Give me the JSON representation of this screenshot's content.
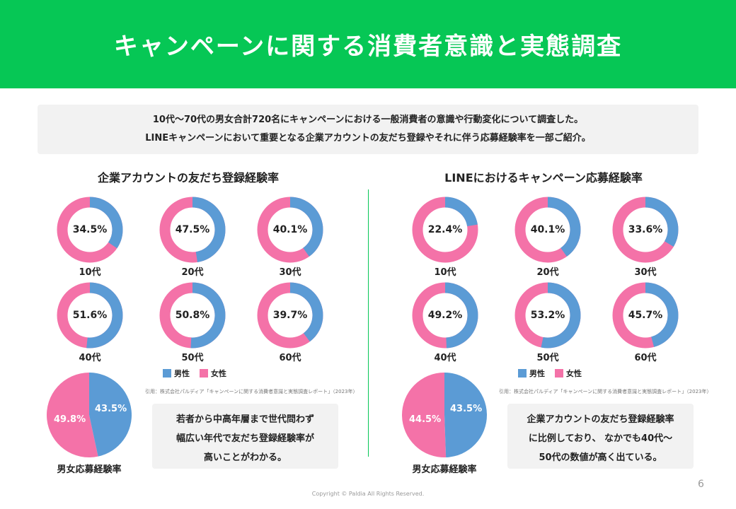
{
  "header": {
    "title": "キャンペーンに関する消費者意識と実態調査"
  },
  "intro": {
    "line1": "10代〜70代の男女合計720名にキャンペーンにおける一般消費者の意識や行動変化について調査した。",
    "line2": "LINEキャンペーンにおいて重要となる企業アカウントの友だち登録やそれに伴う応募経験率を一部ご紹介。"
  },
  "colors": {
    "male": "#5b9bd5",
    "female": "#f472a8",
    "accent": "#06c755"
  },
  "legend": {
    "male": "男性",
    "female": "女性"
  },
  "citation": "引用：株式会社パルディア「キャンペーンに関する消費者意識と実態調査レポート」（2023年）",
  "left": {
    "title": "企業アカウントの友だち登録経験率",
    "donuts": [
      {
        "age": "10代",
        "label": "34.5%",
        "value": 34.5
      },
      {
        "age": "20代",
        "label": "47.5%",
        "value": 47.5
      },
      {
        "age": "30代",
        "label": "40.1%",
        "value": 40.1
      },
      {
        "age": "40代",
        "label": "51.6%",
        "value": 51.6
      },
      {
        "age": "50代",
        "label": "50.8%",
        "value": 50.8
      },
      {
        "age": "60代",
        "label": "39.7%",
        "value": 39.7
      }
    ],
    "pie": {
      "male_label": "43.5%",
      "male": 43.5,
      "female_label": "49.8%",
      "female": 49.8,
      "caption": "男女応募経験率"
    },
    "note": [
      "若者から中高年層まで世代問わず",
      "幅広い年代で友だち登録経験率が",
      "高いことがわかる。"
    ]
  },
  "right": {
    "title": "LINEにおけるキャンペーン応募経験率",
    "donuts": [
      {
        "age": "10代",
        "label": "22.4%",
        "value": 22.4
      },
      {
        "age": "20代",
        "label": "40.1%",
        "value": 40.1
      },
      {
        "age": "30代",
        "label": "33.6%",
        "value": 33.6
      },
      {
        "age": "40代",
        "label": "49.2%",
        "value": 49.2
      },
      {
        "age": "50代",
        "label": "53.2%",
        "value": 53.2
      },
      {
        "age": "60代",
        "label": "45.7%",
        "value": 45.7
      }
    ],
    "pie": {
      "male_label": "43.5%",
      "male": 43.5,
      "female_label": "44.5%",
      "female": 44.5,
      "caption": "男女応募経験率"
    },
    "note": [
      "企業アカウントの友だち登録経験率",
      "に比例しており、 なかでも40代〜",
      "50代の数値が高く出ている。"
    ]
  },
  "footer": {
    "page": "6",
    "copyright": "Copyright © Paldia All Rights Reserved."
  }
}
